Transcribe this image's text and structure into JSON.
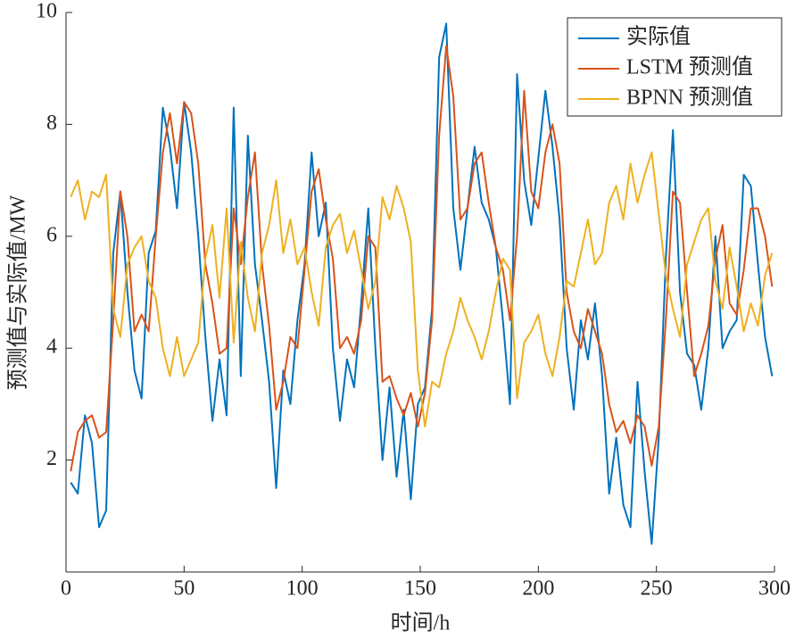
{
  "chart_data": {
    "type": "line",
    "x_label": "时间/h",
    "y_label": "预测值与实际值/MW",
    "xlim": [
      0,
      300
    ],
    "xticks": [
      0,
      50,
      100,
      150,
      200,
      250,
      300
    ],
    "ylim": [
      0,
      10
    ],
    "yticks": [
      2,
      4,
      6,
      8,
      10
    ],
    "legend": "upper right",
    "x": [
      2,
      5,
      8,
      11,
      14,
      17,
      20,
      23,
      26,
      29,
      32,
      35,
      38,
      41,
      44,
      47,
      50,
      53,
      56,
      59,
      62,
      65,
      68,
      71,
      74,
      77,
      80,
      83,
      86,
      89,
      92,
      95,
      98,
      101,
      104,
      107,
      110,
      113,
      116,
      119,
      122,
      125,
      128,
      131,
      134,
      137,
      140,
      143,
      146,
      149,
      152,
      155,
      158,
      161,
      164,
      167,
      170,
      173,
      176,
      179,
      182,
      185,
      188,
      191,
      194,
      197,
      200,
      203,
      206,
      209,
      212,
      215,
      218,
      221,
      224,
      227,
      230,
      233,
      236,
      239,
      242,
      245,
      248,
      251,
      254,
      257,
      260,
      263,
      266,
      269,
      272,
      275,
      278,
      281,
      284,
      287,
      290,
      293,
      296,
      299
    ],
    "series": [
      {
        "name": "实际值",
        "color": "#0072BD",
        "values": [
          1.6,
          1.4,
          2.8,
          2.3,
          0.8,
          1.1,
          5.7,
          6.8,
          5,
          3.6,
          3.1,
          5.7,
          6.1,
          8.3,
          7.6,
          6.5,
          8.4,
          7.5,
          6,
          4.2,
          2.7,
          3.8,
          2.8,
          8.3,
          3.5,
          7.8,
          5.5,
          4.5,
          3.4,
          1.5,
          3.6,
          3,
          4.5,
          5.5,
          7.5,
          6,
          6.6,
          4,
          2.7,
          3.8,
          3.3,
          4.8,
          6.5,
          4,
          2,
          3.3,
          1.7,
          2.9,
          1.3,
          3,
          3.3,
          4.7,
          9.2,
          9.8,
          6.5,
          5.4,
          6.5,
          7.6,
          6.6,
          6.3,
          5.8,
          4.5,
          3,
          8.9,
          7,
          6.2,
          7.4,
          8.6,
          7.6,
          6.3,
          4,
          2.9,
          4.5,
          3.8,
          4.8,
          3.5,
          1.4,
          2.4,
          1.2,
          0.8,
          3.4,
          1.8,
          0.5,
          2.4,
          5.6,
          7.9,
          5,
          3.9,
          3.7,
          2.9,
          4,
          6,
          4,
          4.3,
          4.5,
          7.1,
          6.9,
          5.5,
          4.2,
          3.5
        ]
      },
      {
        "name": "LSTM 预测值",
        "color": "#D95319",
        "values": [
          1.8,
          2.5,
          2.7,
          2.8,
          2.4,
          2.5,
          4.5,
          6.8,
          6,
          4.3,
          4.6,
          4.3,
          6,
          7.5,
          8.2,
          7.3,
          8.4,
          8.2,
          7.3,
          5.5,
          4.8,
          3.9,
          4,
          6.5,
          5.5,
          6.7,
          7.5,
          5.5,
          4.4,
          2.9,
          3.4,
          4.2,
          4,
          5.4,
          6.8,
          7.2,
          6.3,
          5.6,
          4,
          4.2,
          3.9,
          4.5,
          6,
          5.8,
          3.4,
          3.5,
          3.1,
          2.8,
          3.2,
          2.6,
          3.2,
          4.5,
          7.8,
          9.4,
          8.5,
          6.3,
          6.5,
          7.3,
          7.5,
          6.6,
          5.8,
          5.4,
          4.5,
          6,
          8.6,
          6.8,
          6.5,
          7.5,
          8,
          7.3,
          5,
          4.3,
          4,
          4.7,
          4.3,
          3.9,
          3,
          2.5,
          2.7,
          2.3,
          2.8,
          2.6,
          1.9,
          2.6,
          4.5,
          6.8,
          6.6,
          5,
          3.5,
          3.9,
          4.4,
          5.6,
          6.2,
          4.8,
          4.6,
          5.4,
          6.5,
          6.5,
          6,
          5.1
        ]
      },
      {
        "name": "BPNN 预测值",
        "color": "#EDB120",
        "values": [
          6.7,
          7,
          6.3,
          6.8,
          6.7,
          7.1,
          4.7,
          4.2,
          5.5,
          5.8,
          6,
          5.2,
          4.9,
          4,
          3.5,
          4.2,
          3.5,
          3.8,
          4.1,
          5.6,
          6.2,
          4.9,
          6.5,
          4.1,
          5.9,
          4.9,
          4.3,
          5.7,
          6.2,
          7,
          5.7,
          6.3,
          5.5,
          5.8,
          5,
          4.4,
          5.8,
          6.2,
          6.4,
          5.7,
          6.1,
          5.4,
          4.7,
          5.2,
          6.7,
          6.3,
          6.9,
          6.5,
          5.9,
          3.6,
          2.6,
          3.4,
          3.3,
          3.9,
          4.3,
          4.9,
          4.5,
          4.2,
          3.8,
          4.3,
          5,
          5.6,
          5.4,
          3.1,
          4.1,
          4.3,
          4.6,
          3.9,
          3.5,
          4.2,
          5.2,
          5.1,
          5.7,
          6.3,
          5.5,
          5.7,
          6.6,
          6.9,
          6.3,
          7.3,
          6.6,
          7.1,
          7.5,
          6.4,
          5.3,
          4.7,
          4.2,
          5.5,
          5.9,
          6.3,
          6.5,
          5.2,
          4.7,
          5.8,
          5.1,
          4.3,
          4.8,
          4.4,
          5.3,
          5.7
        ]
      }
    ]
  }
}
